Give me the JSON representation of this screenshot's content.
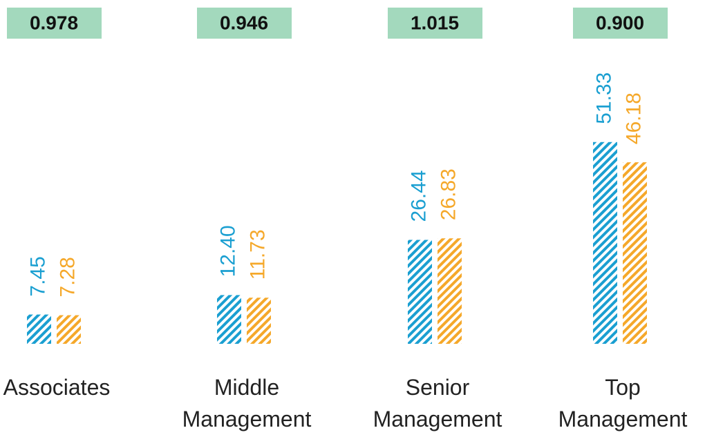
{
  "chart_data": {
    "type": "bar",
    "categories": [
      "Associates",
      "Middle Management",
      "Senior Management",
      "Top Management"
    ],
    "ratios": [
      "0.978",
      "0.946",
      "1.015",
      "0.900"
    ],
    "series": [
      {
        "color": "#1a9fd1",
        "values": [
          7.45,
          12.4,
          26.44,
          51.33
        ],
        "value_labels": [
          "7.45",
          "12.40",
          "26.44",
          "51.33"
        ]
      },
      {
        "color": "#f5a82a",
        "values": [
          7.28,
          11.73,
          26.83,
          46.18
        ],
        "value_labels": [
          "7.28",
          "11.73",
          "26.83",
          "46.18"
        ]
      }
    ],
    "ylim": [
      0,
      75
    ]
  }
}
